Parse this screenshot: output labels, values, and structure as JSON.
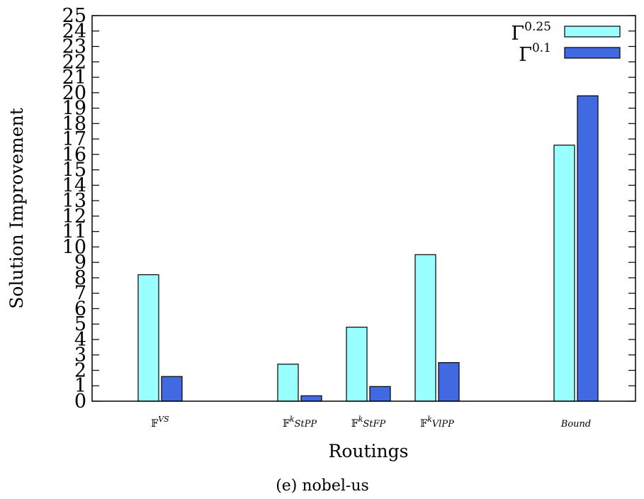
{
  "chart_data": {
    "type": "bar",
    "title": "",
    "xlabel": "Routings",
    "ylabel": "Solution Improvement",
    "caption": "(e) nobel-us",
    "ylim": [
      0,
      25
    ],
    "yticks": [
      0,
      1,
      2,
      3,
      4,
      5,
      6,
      7,
      8,
      9,
      10,
      11,
      12,
      13,
      14,
      15,
      16,
      17,
      18,
      19,
      20,
      21,
      22,
      23,
      24,
      25
    ],
    "grid": false,
    "legend_position": "top-right",
    "categories": [
      {
        "base": "𝔽",
        "sup": "VS",
        "rest": ""
      },
      {
        "base": "𝔽",
        "sup": "k",
        "rest": "StPP"
      },
      {
        "base": "𝔽",
        "sup": "k",
        "rest": "StFP"
      },
      {
        "base": "𝔽",
        "sup": "k",
        "rest": "VlPP"
      },
      {
        "base": "",
        "sup": "",
        "rest": "Bound"
      }
    ],
    "series": [
      {
        "name": "Γ",
        "name_sup": "0.25",
        "color": "#99ffff",
        "values": [
          8.2,
          2.4,
          4.8,
          9.5,
          16.6
        ]
      },
      {
        "name": "Γ",
        "name_sup": "0.1",
        "color": "#4169e1",
        "values": [
          1.6,
          0.35,
          0.95,
          2.5,
          19.8
        ]
      }
    ]
  }
}
